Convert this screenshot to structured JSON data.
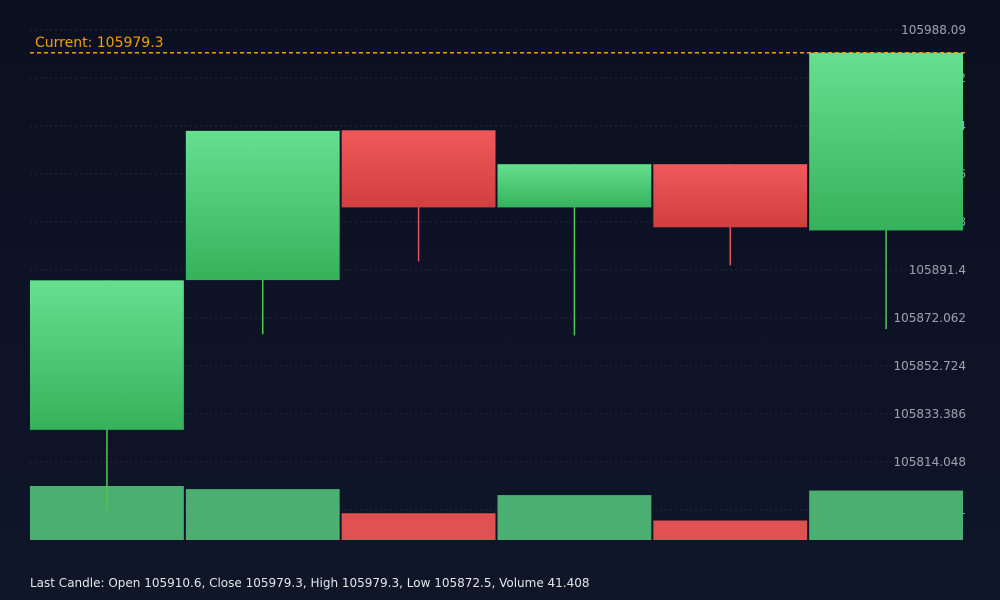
{
  "colors": {
    "background": "#0c1222",
    "grid": "#334155",
    "up": "#4ade80",
    "up_dark": "#38b25e",
    "down": "#ef5350",
    "down_dark": "#d33f3d",
    "wick_up": "#4cc94f",
    "wick_down": "#e0545b",
    "volume_up": "#4caf72",
    "volume_down": "#e05252",
    "current_line": "#f59e0b",
    "axis_text": "#9ca3af"
  },
  "chart_data": {
    "type": "candlestick",
    "ylim": [
      105802.5,
      105988.09
    ],
    "y_ticks": [
      "105988.09",
      "105968.752",
      "105949.414",
      "105930.076",
      "105910.738",
      "105891.4",
      "105872.062",
      "105852.724",
      "105833.386",
      "105814.048",
      "105794.71"
    ],
    "candles": [
      {
        "open": 105833.5,
        "close": 105891.3,
        "high": 105891.3,
        "low": 105802.5,
        "volume": 45.2,
        "direction": "up"
      },
      {
        "open": 105891.4,
        "close": 105949.1,
        "high": 105949.1,
        "low": 105870.5,
        "volume": 42.6,
        "direction": "up"
      },
      {
        "open": 105949.3,
        "close": 105919.5,
        "high": 105949.3,
        "low": 105898.7,
        "volume": 22.4,
        "direction": "down"
      },
      {
        "open": 105919.5,
        "close": 105936.2,
        "high": 105936.2,
        "low": 105870.0,
        "volume": 37.6,
        "direction": "up"
      },
      {
        "open": 105936.2,
        "close": 105911.8,
        "high": 105936.2,
        "low": 105897.1,
        "volume": 16.3,
        "direction": "down"
      },
      {
        "open": 105910.6,
        "close": 105979.3,
        "high": 105979.3,
        "low": 105872.5,
        "volume": 41.408,
        "direction": "up"
      }
    ],
    "current_price": 105979.3
  },
  "labels": {
    "current": "Current: 105979.3",
    "footer": "Last Candle: Open 105910.6, Close 105979.3, High 105979.3, Low 105872.5, Volume 41.408"
  }
}
